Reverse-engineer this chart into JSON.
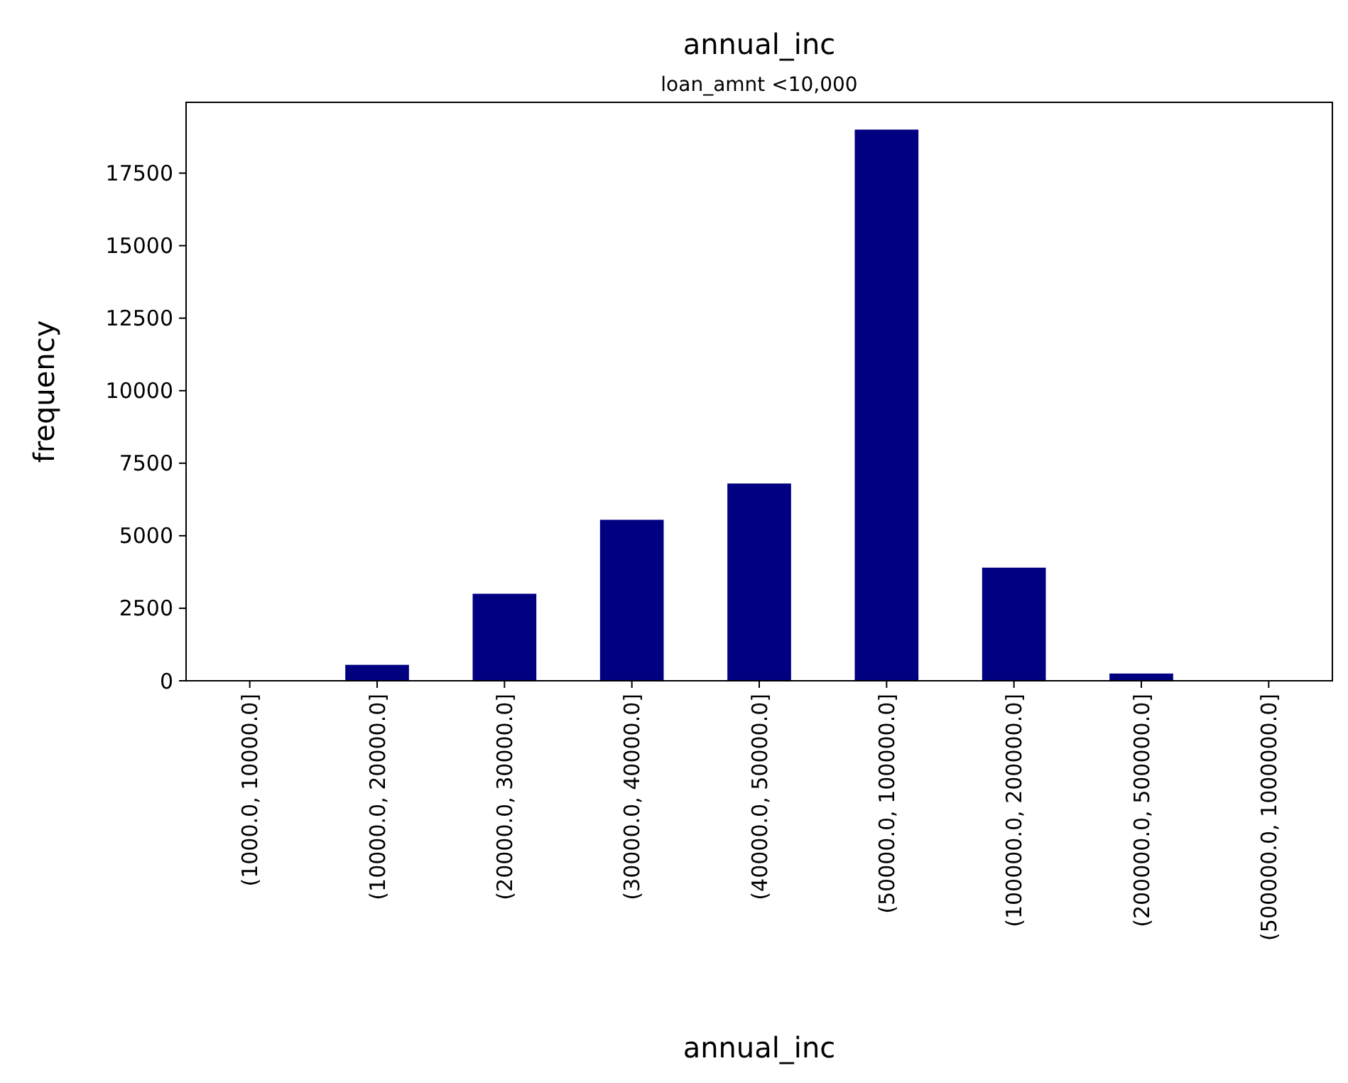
{
  "chart_data": {
    "type": "bar",
    "title": "annual_inc",
    "subtitle": "loan_amnt <10,000",
    "xlabel": "annual_inc",
    "ylabel": "frequency",
    "categories": [
      "(1000.0, 10000.0]",
      "(10000.0, 20000.0]",
      "(20000.0, 30000.0]",
      "(30000.0, 40000.0]",
      "(40000.0, 50000.0]",
      "(50000.0, 100000.0]",
      "(100000.0, 200000.0]",
      "(200000.0, 500000.0]",
      "(500000.0, 1000000.0]"
    ],
    "values": [
      0,
      550,
      3000,
      5550,
      6800,
      19000,
      3900,
      250,
      0
    ],
    "color": "#000080",
    "ylim": [
      0,
      19940
    ],
    "yticks": [
      0,
      2500,
      5000,
      7500,
      10000,
      12500,
      15000,
      17500
    ],
    "grid": false
  }
}
